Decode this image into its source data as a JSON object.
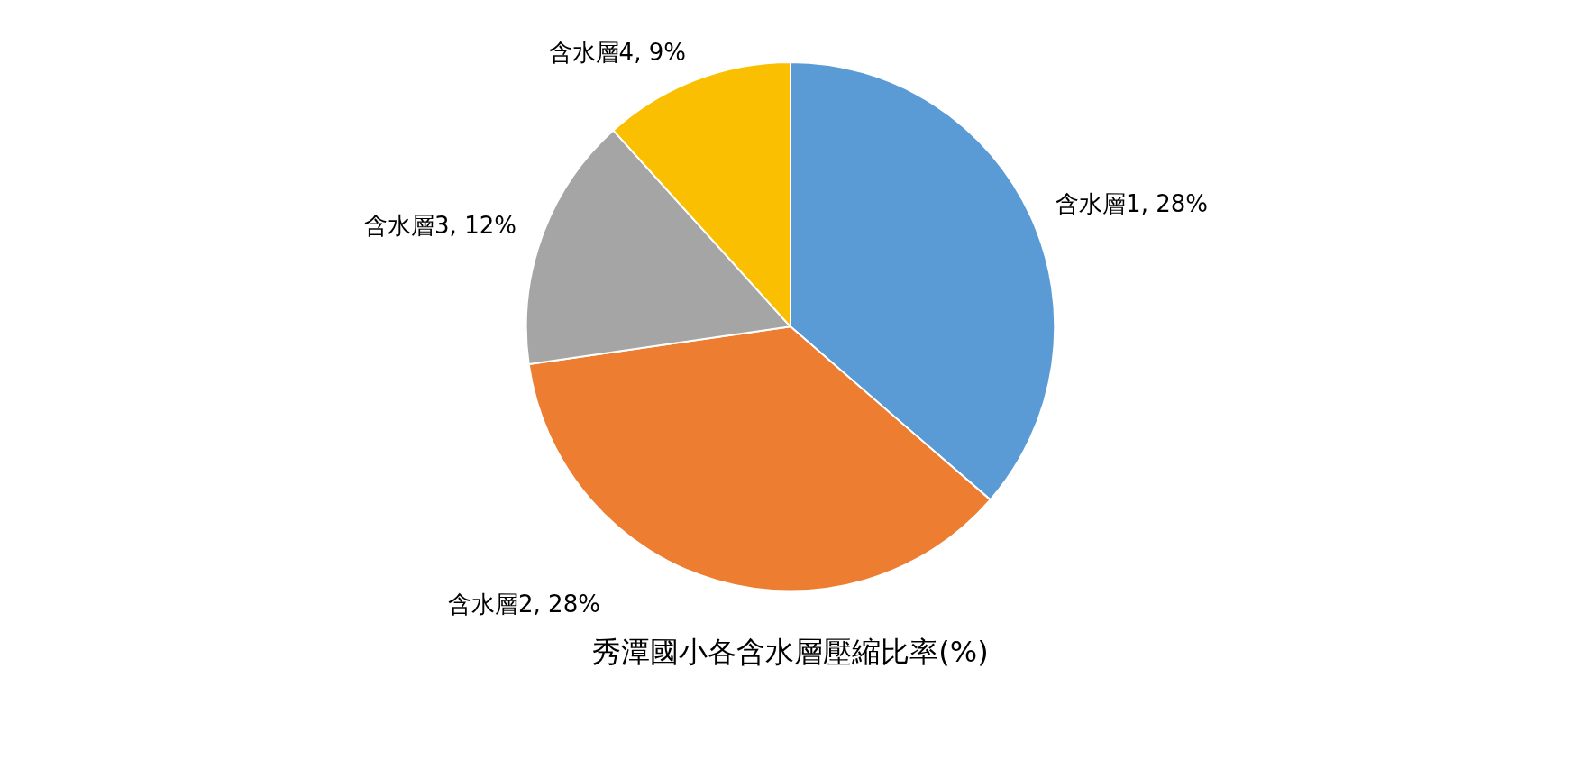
{
  "chart_data": {
    "type": "pie",
    "title": "秀潭國小各含水層壓縮比率(%)",
    "categories": [
      "含水層1",
      "含水層2",
      "含水層3",
      "含水層4"
    ],
    "values": [
      28,
      28,
      12,
      9
    ],
    "value_labels": [
      "28%",
      "28%",
      "12%",
      "9%"
    ],
    "colors": [
      "#5b9bd5",
      "#ed7d31",
      "#a5a5a5",
      "#f9bf00"
    ],
    "legend": false
  }
}
